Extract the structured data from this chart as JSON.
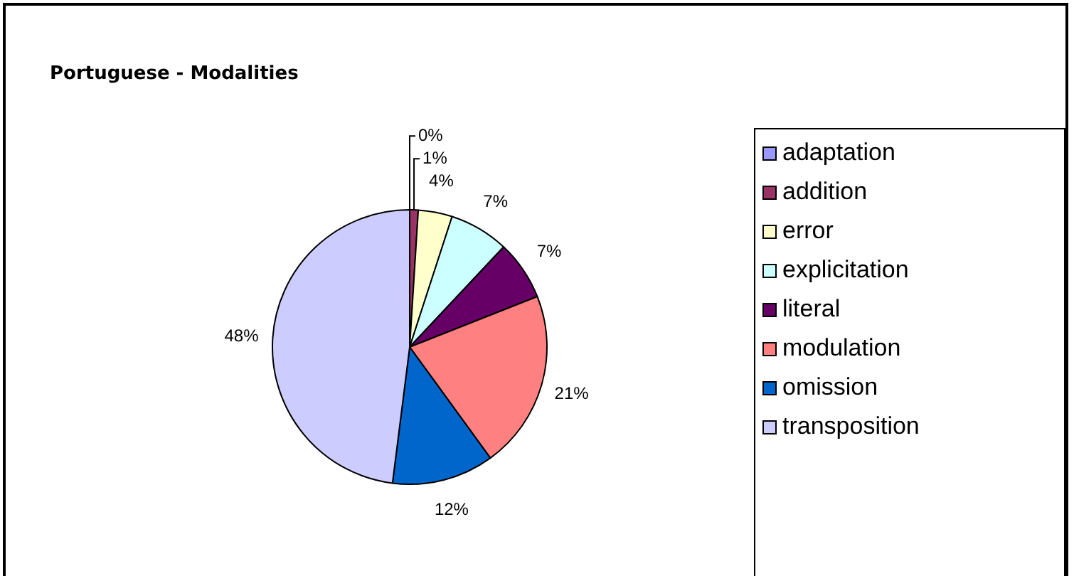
{
  "chart_data": {
    "type": "pie",
    "title": "Portuguese - Modalities",
    "categories": [
      "adaptation",
      "addition",
      "error",
      "explicitation",
      "literal",
      "modulation",
      "omission",
      "transposition"
    ],
    "values": [
      0,
      1,
      4,
      7,
      7,
      21,
      12,
      48
    ],
    "colors": [
      "#9999ff",
      "#993366",
      "#ffffcc",
      "#ccffff",
      "#660066",
      "#ff8080",
      "#0066cc",
      "#ccccff"
    ],
    "value_labels": [
      "0%",
      "1%",
      "4%",
      "7%",
      "7%",
      "21%",
      "12%",
      "48%"
    ],
    "legend": "right"
  }
}
